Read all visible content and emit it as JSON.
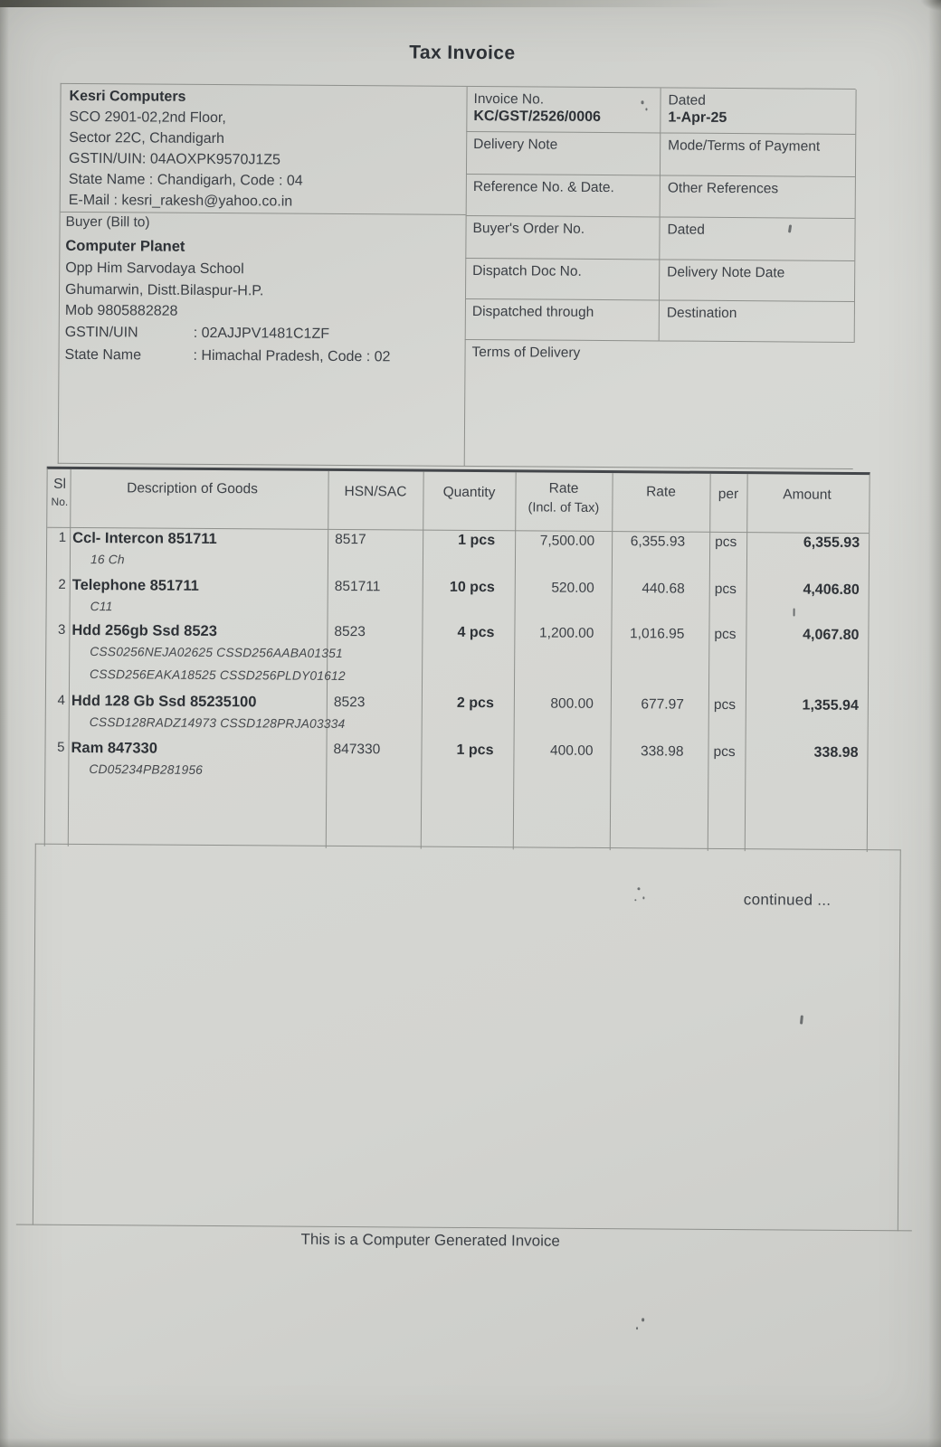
{
  "page": {
    "title": "Tax Invoice",
    "continued": "continued ...",
    "footer": "This is a Computer Generated Invoice"
  },
  "seller": {
    "name": "Kesri Computers",
    "line1": "SCO 2901-02,2nd Floor,",
    "line2": "Sector 22C, Chandigarh",
    "line3": "GSTIN/UIN: 04AOXPK9570J1Z5",
    "line4": "State Name :  Chandigarh, Code : 04",
    "line5": "E-Mail : kesri_rakesh@yahoo.co.in"
  },
  "buyer": {
    "section_label": "Buyer (Bill to)",
    "name": "Computer Planet",
    "line1": "Opp Him Sarvodaya School",
    "line2": "Ghumarwin, Distt.Bilaspur-H.P.",
    "line3": "Mob 9805882828",
    "gstin_label": "GSTIN/UIN",
    "gstin_value": ": 02AJJPV1481C1ZF",
    "state_label": "State Name",
    "state_value": ": Himachal Pradesh, Code : 02"
  },
  "meta": {
    "rows": [
      {
        "left_label": "Invoice No.",
        "left_value": "KC/GST/2526/0006",
        "right_label": "Dated",
        "right_value": "1-Apr-25"
      },
      {
        "left_label": "Delivery Note",
        "left_value": "",
        "right_label": "Mode/Terms of Payment",
        "right_value": ""
      },
      {
        "left_label": "Reference No. & Date.",
        "left_value": "",
        "right_label": "Other References",
        "right_value": ""
      },
      {
        "left_label": "Buyer's Order No.",
        "left_value": "",
        "right_label": "Dated",
        "right_value": ""
      },
      {
        "left_label": "Dispatch Doc No.",
        "left_value": "",
        "right_label": "Delivery Note Date",
        "right_value": ""
      },
      {
        "left_label": "Dispatched through",
        "left_value": "",
        "right_label": "Destination",
        "right_value": ""
      },
      {
        "left_label": "Terms of Delivery",
        "left_value": "",
        "right_label": "",
        "right_value": ""
      }
    ]
  },
  "items_table": {
    "columns": {
      "sl_line1": "Sl",
      "sl_line2": "No.",
      "description": "Description of Goods",
      "hsn": "HSN/SAC",
      "quantity": "Quantity",
      "rate_incl_line1": "Rate",
      "rate_incl_line2": "(Incl. of Tax)",
      "rate": "Rate",
      "per": "per",
      "amount": "Amount"
    },
    "rows": [
      {
        "sl": "1",
        "desc": "Ccl- Intercon 851711",
        "sub": [
          "16 Ch"
        ],
        "hsn": "8517",
        "qty": "1 pcs",
        "rate_incl": "7,500.00",
        "rate": "6,355.93",
        "per": "pcs",
        "amount": "6,355.93"
      },
      {
        "sl": "2",
        "desc": "Telephone 851711",
        "sub": [
          "C11"
        ],
        "hsn": "851711",
        "qty": "10 pcs",
        "rate_incl": "520.00",
        "rate": "440.68",
        "per": "pcs",
        "amount": "4,406.80"
      },
      {
        "sl": "3",
        "desc": "Hdd 256gb Ssd 8523",
        "sub": [
          "CSS0256NEJA02625 CSSD256AABA01351",
          "CSSD256EAKA18525  CSSD256PLDY01612"
        ],
        "hsn": "8523",
        "qty": "4 pcs",
        "rate_incl": "1,200.00",
        "rate": "1,016.95",
        "per": "pcs",
        "amount": "4,067.80"
      },
      {
        "sl": "4",
        "desc": "Hdd 128 Gb Ssd 85235100",
        "sub": [
          "CSSD128RADZ14973  CSSD128PRJA03334"
        ],
        "hsn": "8523",
        "qty": "2 pcs",
        "rate_incl": "800.00",
        "rate": "677.97",
        "per": "pcs",
        "amount": "1,355.94"
      },
      {
        "sl": "5",
        "desc": "Ram 847330",
        "sub": [
          "CD05234PB281956"
        ],
        "hsn": "847330",
        "qty": "1 pcs",
        "rate_incl": "400.00",
        "rate": "338.98",
        "per": "pcs",
        "amount": "338.98"
      }
    ]
  }
}
